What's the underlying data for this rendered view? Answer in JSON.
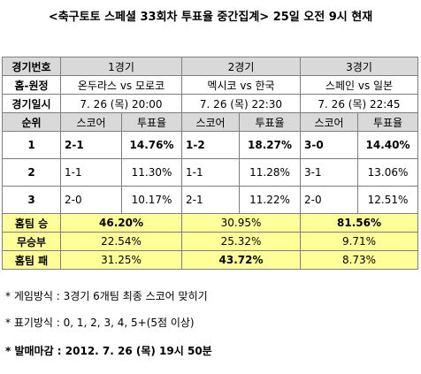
{
  "title": "<축구토토 스페셜 33회차 투표율 중간집계> 25일 오전 9시 현재",
  "table": {
    "header_row": {
      "label": "경기번호",
      "games": [
        "1경기",
        "2경기",
        "3경기"
      ]
    },
    "home_away_row": {
      "label": "홈-원정",
      "matches": [
        "온두라스 vs 모로코",
        "멕시코 vs 한국",
        "스페인 vs 일본"
      ]
    },
    "datetime_row": {
      "label": "경기일시",
      "values": [
        "7. 26 (목) 20:00",
        "7. 26 (목) 22:30",
        "7. 26 (목) 22:45"
      ]
    },
    "column_row": {
      "rank_label": "순위",
      "score_label": "스코어",
      "rate_label": "투표율"
    },
    "rank_rows": [
      {
        "rank": "1",
        "cells": [
          {
            "score": "2-1",
            "rate": "14.76%"
          },
          {
            "score": "1-2",
            "rate": "18.27%"
          },
          {
            "score": "3-0",
            "rate": "14.40%"
          }
        ]
      },
      {
        "rank": "2",
        "cells": [
          {
            "score": "1-1",
            "rate": "11.30%"
          },
          {
            "score": "1-1",
            "rate": "11.28%"
          },
          {
            "score": "3-1",
            "rate": "13.06%"
          }
        ]
      },
      {
        "rank": "3",
        "cells": [
          {
            "score": "2-0",
            "rate": "10.17%"
          },
          {
            "score": "2-1",
            "rate": "11.22%"
          },
          {
            "score": "2-0",
            "rate": "12.51%"
          }
        ]
      }
    ],
    "summary_rows": [
      {
        "label": "홈팀 승",
        "values": [
          "46.20%",
          "30.95%",
          "81.56%"
        ]
      },
      {
        "label": "무승부",
        "values": [
          "22.54%",
          "25.32%",
          "9.71%"
        ]
      },
      {
        "label": "홈팀 패",
        "values": [
          "31.25%",
          "43.72%",
          "8.73%"
        ]
      }
    ]
  },
  "notes": {
    "method": "*  게임방식 : 3경기 6개팀 최종 스코어 맞히기",
    "display": "*  표기방식 : 0, 1, 2, 3, 4, 5+(5점 이상)",
    "deadline": "*  발매마감 : 2012. 7. 26 (목) 19시 50분"
  }
}
